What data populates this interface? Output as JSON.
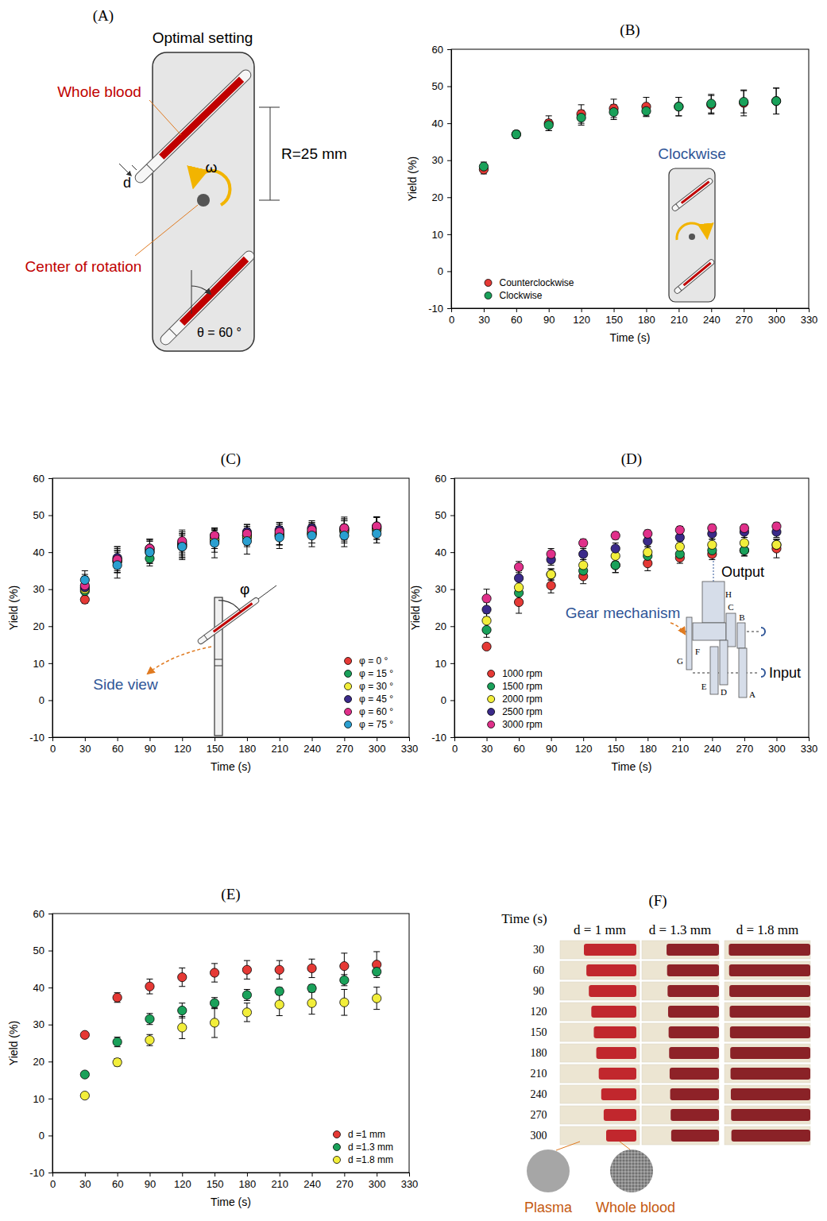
{
  "diagram_a": {
    "label": "(A)",
    "title": "Optimal setting",
    "whole_blood": "Whole blood",
    "radius": "R=25 mm",
    "d": "d",
    "omega": "ω",
    "center": "Center of rotation",
    "theta": "θ = 60 °"
  },
  "chart_data": [
    {
      "type": "scatter",
      "title": "(B)",
      "x_label": "Time (s)",
      "y_label": "Yield (%)",
      "x": [
        30,
        60,
        90,
        120,
        150,
        180,
        210,
        240,
        270,
        300
      ],
      "xlim": [
        0,
        330
      ],
      "xticks": [
        0,
        30,
        60,
        90,
        120,
        150,
        180,
        210,
        240,
        270,
        300,
        330
      ],
      "ylim": [
        -10,
        60
      ],
      "yticks": [
        -10,
        0,
        10,
        20,
        30,
        40,
        50,
        60
      ],
      "legend": "lower left",
      "marker": "circle",
      "annotations": [
        "Clockwise"
      ],
      "series": [
        {
          "name": "Counterclockwise",
          "color": "#e53935",
          "values": [
            27.5,
            37.0,
            40.0,
            42.5,
            44.0,
            44.5,
            44.5,
            45.0,
            45.5,
            46.0
          ],
          "errors": [
            1.2,
            1.0,
            2.0,
            2.5,
            2.5,
            2.5,
            2.5,
            2.5,
            3.5,
            3.5
          ]
        },
        {
          "name": "Clockwise",
          "color": "#1aa15a",
          "values": [
            28.3,
            37.0,
            39.5,
            41.5,
            43.0,
            43.3,
            44.5,
            45.3,
            45.8,
            46.0
          ],
          "errors": [
            1.2,
            1.0,
            1.5,
            2.0,
            2.0,
            1.5,
            2.5,
            2.5,
            3.0,
            3.5
          ]
        }
      ]
    },
    {
      "type": "scatter",
      "title": "(C)",
      "x_label": "Time (s)",
      "y_label": "Yield (%)",
      "x": [
        30,
        60,
        90,
        120,
        150,
        180,
        210,
        240,
        270,
        300
      ],
      "xlim": [
        0,
        330
      ],
      "xticks": [
        0,
        30,
        60,
        90,
        120,
        150,
        180,
        210,
        240,
        270,
        300,
        330
      ],
      "ylim": [
        -10,
        60
      ],
      "yticks": [
        -10,
        0,
        10,
        20,
        30,
        40,
        50,
        60
      ],
      "legend": "lower right",
      "marker": "circle",
      "annotations": [
        "Side view",
        "φ"
      ],
      "series": [
        {
          "name": "φ = 0 °",
          "color": "#e53935",
          "values": [
            27.2,
            37.5,
            40.0,
            41.5,
            43.0,
            44.5,
            45.0,
            45.5,
            46.0,
            46.5
          ],
          "errors": [
            1.0,
            3.0,
            3.0,
            3.0,
            3.0,
            3.0,
            3.0,
            3.0,
            3.0,
            3.0
          ]
        },
        {
          "name": "φ = 15 °",
          "color": "#1aa15a",
          "values": [
            29.5,
            37.5,
            38.3,
            42.0,
            43.5,
            44.0,
            44.5,
            45.0,
            45.5,
            46.0
          ],
          "errors": [
            2.5,
            3.0,
            2.0,
            3.5,
            2.5,
            2.0,
            2.5,
            2.5,
            3.0,
            3.5
          ]
        },
        {
          "name": "φ = 30 °",
          "color": "#f2ee3a",
          "values": [
            30.0,
            38.0,
            40.5,
            42.0,
            43.5,
            44.5,
            44.5,
            45.0,
            46.0,
            46.5
          ],
          "errors": [
            2.5,
            3.0,
            3.0,
            3.0,
            2.5,
            2.5,
            2.5,
            2.5,
            2.5,
            3.0
          ]
        },
        {
          "name": "φ = 45 °",
          "color": "#3b2a8a",
          "values": [
            30.5,
            38.5,
            41.0,
            42.5,
            44.5,
            45.5,
            46.0,
            46.5,
            46.5,
            47.0
          ],
          "errors": [
            3.0,
            3.0,
            2.5,
            3.0,
            2.0,
            2.0,
            2.0,
            1.5,
            2.5,
            2.5
          ]
        },
        {
          "name": "φ = 60 °",
          "color": "#e0308a",
          "values": [
            31.0,
            38.0,
            41.0,
            43.0,
            44.5,
            45.0,
            45.5,
            46.0,
            46.5,
            47.0
          ],
          "errors": [
            3.0,
            3.5,
            2.5,
            3.0,
            2.0,
            2.0,
            2.0,
            2.0,
            3.0,
            2.5
          ]
        },
        {
          "name": "φ = 75 °",
          "color": "#2a9fd0",
          "values": [
            32.5,
            36.5,
            40.0,
            41.5,
            42.5,
            43.0,
            44.0,
            44.5,
            44.5,
            45.0
          ],
          "errors": [
            2.5,
            3.5,
            3.0,
            3.5,
            4.0,
            3.5,
            3.0,
            3.0,
            3.0,
            2.5
          ]
        }
      ]
    },
    {
      "type": "scatter",
      "title": "(D)",
      "x_label": "Time (s)",
      "y_label": "Yield (%)",
      "x": [
        30,
        60,
        90,
        120,
        150,
        180,
        210,
        240,
        270,
        300
      ],
      "xlim": [
        0,
        330
      ],
      "xticks": [
        0,
        30,
        60,
        90,
        120,
        150,
        180,
        210,
        240,
        270,
        300,
        330
      ],
      "ylim": [
        -10,
        60
      ],
      "yticks": [
        -10,
        0,
        10,
        20,
        30,
        40,
        50,
        60
      ],
      "legend": "lower left",
      "marker": "circle",
      "annotations": [
        "Gear mechanism",
        "Output",
        "Input",
        "A",
        "B",
        "C",
        "D",
        "E",
        "F",
        "G",
        "H"
      ],
      "series": [
        {
          "name": "1000 rpm",
          "color": "#e53935",
          "values": [
            14.5,
            26.5,
            31.0,
            33.5,
            36.5,
            37.0,
            38.5,
            39.5,
            40.5,
            41.0
          ],
          "errors": [
            0.5,
            3.0,
            2.0,
            2.0,
            2.0,
            2.0,
            1.5,
            1.5,
            1.5,
            2.5
          ]
        },
        {
          "name": "1500 rpm",
          "color": "#1aa15a",
          "values": [
            19.0,
            29.0,
            34.0,
            35.0,
            36.5,
            39.0,
            39.5,
            40.5,
            40.5,
            42.0
          ],
          "errors": [
            2.0,
            2.0,
            1.5,
            2.0,
            2.0,
            1.5,
            1.5,
            1.5,
            1.5,
            1.5
          ]
        },
        {
          "name": "2000 rpm",
          "color": "#f2ee3a",
          "values": [
            21.5,
            30.5,
            34.0,
            36.5,
            39.0,
            40.0,
            41.5,
            42.0,
            42.5,
            42.0
          ],
          "errors": [
            2.0,
            2.0,
            1.5,
            1.5,
            1.5,
            1.5,
            1.5,
            1.5,
            1.5,
            1.5
          ]
        },
        {
          "name": "2500 rpm",
          "color": "#3b2a8a",
          "values": [
            24.5,
            33.0,
            38.0,
            39.5,
            41.0,
            43.0,
            44.0,
            45.0,
            45.5,
            45.5
          ],
          "errors": [
            2.0,
            2.0,
            1.5,
            1.5,
            1.5,
            1.5,
            1.5,
            1.5,
            1.5,
            1.5
          ]
        },
        {
          "name": "3000 rpm",
          "color": "#e0308a",
          "values": [
            27.5,
            36.0,
            39.5,
            42.5,
            44.5,
            45.0,
            46.0,
            46.5,
            46.5,
            47.0
          ],
          "errors": [
            2.5,
            1.5,
            1.5,
            1.0,
            1.0,
            1.0,
            1.0,
            1.0,
            1.0,
            1.0
          ]
        }
      ]
    },
    {
      "type": "scatter",
      "title": "(E)",
      "x_label": "Time (s)",
      "y_label": "Yield (%)",
      "x": [
        30,
        60,
        90,
        120,
        150,
        180,
        210,
        240,
        270,
        300
      ],
      "xlim": [
        0,
        330
      ],
      "xticks": [
        0,
        30,
        60,
        90,
        120,
        150,
        180,
        210,
        240,
        270,
        300,
        330
      ],
      "ylim": [
        -10,
        60
      ],
      "yticks": [
        -10,
        0,
        10,
        20,
        30,
        40,
        50,
        60
      ],
      "legend": "lower right",
      "marker": "circle",
      "series": [
        {
          "name": "d =1 mm",
          "color": "#e53935",
          "values": [
            27.2,
            37.3,
            40.3,
            42.8,
            44.0,
            44.8,
            44.8,
            45.2,
            45.8,
            46.2
          ],
          "errors": [
            0.5,
            1.3,
            2.0,
            2.5,
            2.5,
            2.5,
            2.5,
            2.5,
            3.5,
            3.5
          ]
        },
        {
          "name": "d =1.3 mm",
          "color": "#1aa15a",
          "values": [
            16.5,
            25.3,
            31.5,
            33.8,
            35.8,
            38.0,
            39.0,
            39.8,
            42.0,
            44.3
          ],
          "errors": [
            0.7,
            1.3,
            1.5,
            2.0,
            1.5,
            1.5,
            1.0,
            1.0,
            1.5,
            1.0
          ]
        },
        {
          "name": "d =1.8 mm",
          "color": "#f2ee3a",
          "values": [
            10.8,
            19.8,
            25.8,
            29.2,
            30.5,
            33.3,
            35.4,
            35.8,
            36.0,
            37.1
          ],
          "errors": [
            0.5,
            1.0,
            1.5,
            3.0,
            4.0,
            2.5,
            3.0,
            3.0,
            3.5,
            3.0
          ]
        }
      ]
    }
  ],
  "diagram_f": {
    "label": "(F)",
    "time_header": "Time (s)",
    "columns": [
      "d = 1 mm",
      "d = 1.3 mm",
      "d = 1.8 mm"
    ],
    "times": [
      30,
      60,
      90,
      120,
      150,
      180,
      210,
      240,
      270,
      300
    ],
    "plasma": "Plasma",
    "whole_blood": "Whole blood"
  }
}
